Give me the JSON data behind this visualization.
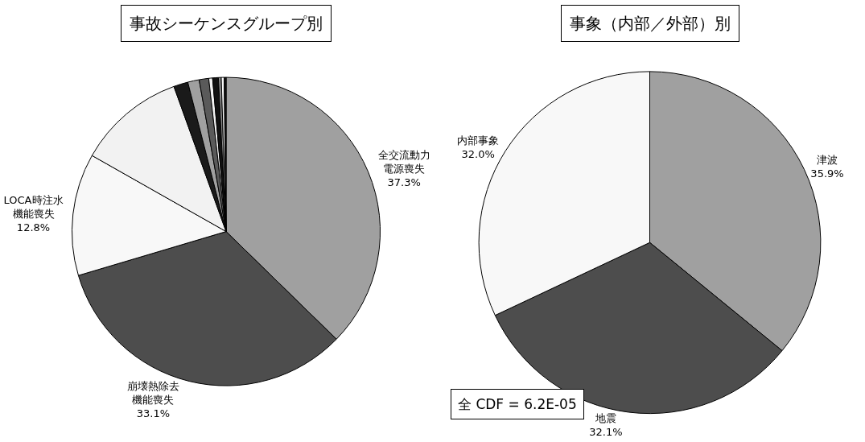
{
  "chart_data": [
    {
      "type": "pie",
      "title": "事故シーケンスグループ別",
      "categories": [
        "全交流動力電源喪失",
        "崩壊熱除去機能喪失",
        "LOCA時注水機能喪失",
        null,
        null,
        null,
        null,
        null,
        null,
        null,
        null,
        null
      ],
      "values": [
        37.3,
        33.1,
        12.8,
        11.3,
        1.5,
        1.2,
        1.0,
        0.4,
        0.6,
        0.3,
        0.3,
        0.2
      ],
      "value_labels": [
        "37.3%",
        "33.1%",
        "12.8%",
        null,
        null,
        null,
        null,
        null,
        null,
        null,
        null,
        null
      ],
      "colors": [
        "#a0a0a0",
        "#4d4d4d",
        "#f8f8f8",
        "#f2f2f2",
        "#1a1a1a",
        "#a0a0a0",
        "#5a5a5a",
        "#f2f2f2",
        "#111111",
        "#8a8a8a",
        "#f8f8f8",
        "#1a1a1a"
      ]
    },
    {
      "type": "pie",
      "title": "事象（内部／外部）別",
      "categories": [
        "津波",
        "地震",
        "内部事象"
      ],
      "values": [
        35.9,
        32.1,
        32.0
      ],
      "value_labels": [
        "35.9%",
        "32.1%",
        "32.0%"
      ],
      "colors": [
        "#a0a0a0",
        "#4d4d4d",
        "#f8f8f8"
      ],
      "annotations": [
        "全 CDF = 6.2E-05"
      ]
    }
  ]
}
